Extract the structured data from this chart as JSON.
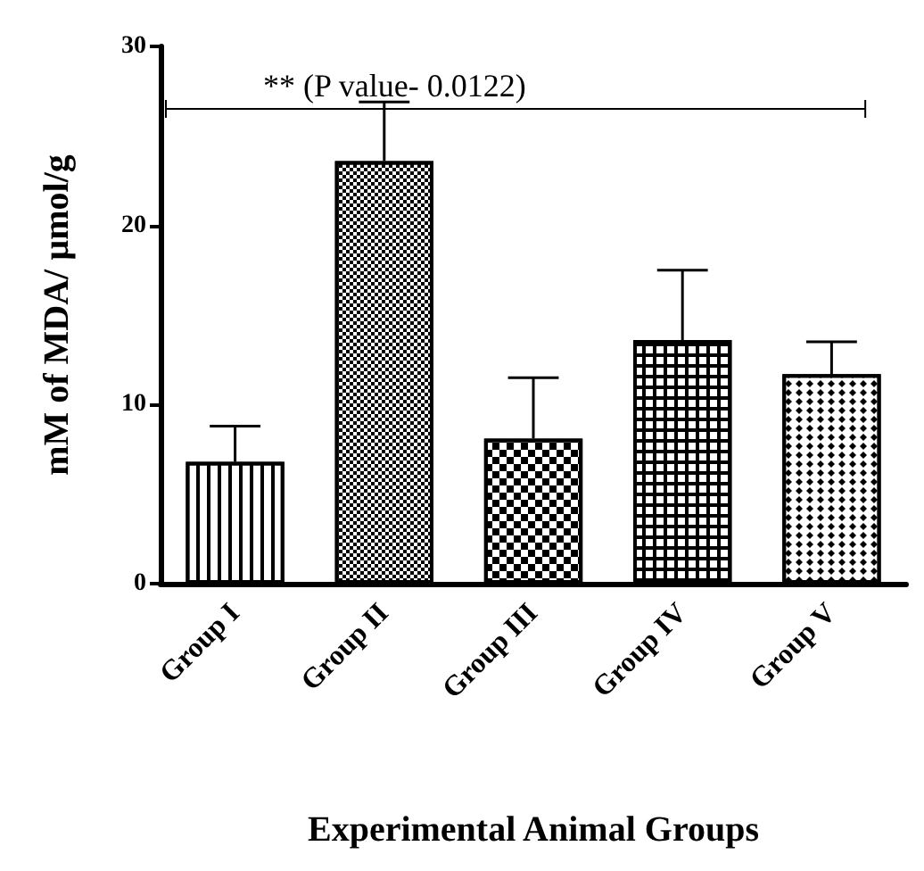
{
  "chart_data": {
    "type": "bar",
    "xlabel": "Experimental Animal Groups",
    "ylabel": "mM of MDA/ µmol/g",
    "categories": [
      "Group I",
      "Group II",
      "Group III",
      "Group IV",
      "Group V"
    ],
    "values": [
      6.8,
      23.6,
      8.1,
      13.6,
      11.7
    ],
    "errors": [
      [
        6.8,
        8.8
      ],
      [
        23.6,
        26.9
      ],
      [
        8.1,
        11.5
      ],
      [
        13.6,
        17.5
      ],
      [
        11.7,
        13.5
      ]
    ],
    "color": "#000000",
    "ylim": [
      0,
      30
    ],
    "yticks": [
      0,
      10,
      20,
      30
    ],
    "grid": false,
    "annotations": [
      "** (P value- 0.0122)"
    ]
  }
}
